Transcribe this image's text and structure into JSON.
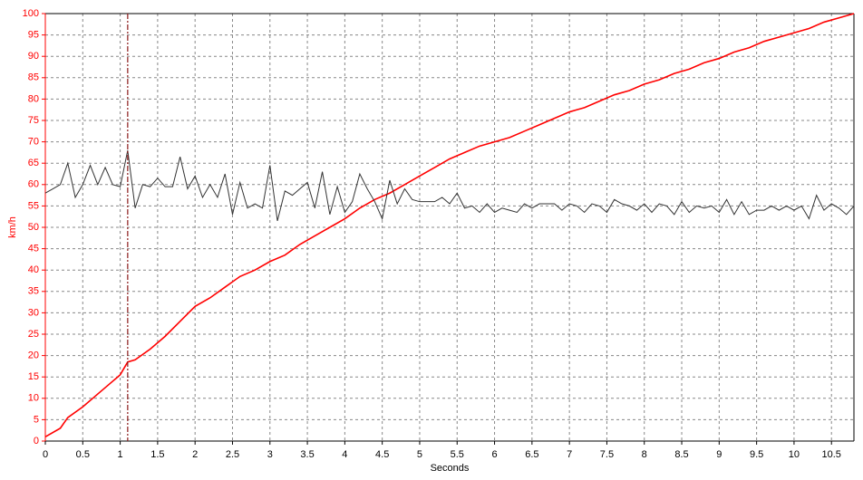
{
  "chart_data": {
    "type": "line",
    "xlabel": "Seconds",
    "ylabel": "km/h",
    "xlim": [
      0,
      10.8
    ],
    "ylim": [
      0,
      100
    ],
    "xticks": [
      0,
      0.5,
      1,
      1.5,
      2,
      2.5,
      3,
      3.5,
      4,
      4.5,
      5,
      5.5,
      6,
      6.5,
      7,
      7.5,
      8,
      8.5,
      9,
      9.5,
      10,
      10.5
    ],
    "yticks": [
      0,
      5,
      10,
      15,
      20,
      25,
      30,
      35,
      40,
      45,
      50,
      55,
      60,
      65,
      70,
      75,
      80,
      85,
      90,
      95,
      100
    ],
    "grid": true,
    "cursor": 1.1,
    "cursor_color": "#8b1a1a",
    "series": [
      {
        "color": "#ff0000",
        "x": [
          0,
          0.2,
          0.3,
          0.5,
          0.7,
          0.9,
          1,
          1.1,
          1.2,
          1.4,
          1.6,
          1.8,
          2,
          2.2,
          2.4,
          2.6,
          2.8,
          3,
          3.2,
          3.4,
          3.6,
          3.8,
          4,
          4.2,
          4.4,
          4.6,
          4.8,
          5,
          5.2,
          5.4,
          5.6,
          5.8,
          6,
          6.2,
          6.4,
          6.6,
          6.8,
          7,
          7.2,
          7.4,
          7.6,
          7.8,
          8,
          8.2,
          8.4,
          8.6,
          8.8,
          9,
          9.2,
          9.4,
          9.6,
          9.8,
          10,
          10.2,
          10.4,
          10.6,
          10.8
        ],
        "values": [
          1,
          3,
          5.5,
          8,
          11,
          14,
          15.5,
          18.5,
          19,
          21.5,
          24.5,
          28,
          31.5,
          33.5,
          36,
          38.5,
          40,
          42,
          43.5,
          46,
          48,
          50,
          52,
          54.5,
          56.5,
          58,
          60,
          62,
          64,
          66,
          67.5,
          69,
          70,
          71,
          72.5,
          74,
          75.5,
          77,
          78,
          79.5,
          81,
          82,
          83.5,
          84.5,
          86,
          87,
          88.5,
          89.5,
          91,
          92,
          93.5,
          94.5,
          95.5,
          96.5,
          98,
          99,
          100
        ]
      },
      {
        "color": "#333333",
        "x": [
          0,
          0.1,
          0.2,
          0.3,
          0.4,
          0.5,
          0.6,
          0.7,
          0.8,
          0.9,
          1,
          1.1,
          1.2,
          1.3,
          1.4,
          1.5,
          1.6,
          1.7,
          1.8,
          1.9,
          2,
          2.1,
          2.2,
          2.3,
          2.4,
          2.5,
          2.6,
          2.7,
          2.8,
          2.9,
          3,
          3.1,
          3.2,
          3.3,
          3.4,
          3.5,
          3.6,
          3.7,
          3.8,
          3.9,
          4,
          4.1,
          4.2,
          4.3,
          4.4,
          4.5,
          4.6,
          4.7,
          4.8,
          4.9,
          5,
          5.1,
          5.2,
          5.3,
          5.4,
          5.5,
          5.6,
          5.7,
          5.8,
          5.9,
          6,
          6.1,
          6.2,
          6.3,
          6.4,
          6.5,
          6.6,
          6.7,
          6.8,
          6.9,
          7,
          7.1,
          7.2,
          7.3,
          7.4,
          7.5,
          7.6,
          7.7,
          7.8,
          7.9,
          8,
          8.1,
          8.2,
          8.3,
          8.4,
          8.5,
          8.6,
          8.7,
          8.8,
          8.9,
          9,
          9.1,
          9.2,
          9.3,
          9.4,
          9.5,
          9.6,
          9.7,
          9.8,
          9.9,
          10,
          10.1,
          10.2,
          10.3,
          10.4,
          10.5,
          10.6,
          10.7,
          10.8
        ],
        "values": [
          58,
          59,
          60,
          65,
          57,
          60,
          64.5,
          60,
          64,
          60,
          59.5,
          68,
          54.5,
          60,
          59.5,
          61.5,
          59.5,
          59.5,
          66.5,
          59,
          62,
          57,
          60,
          57,
          62.5,
          53,
          60.5,
          54.5,
          55.5,
          54.5,
          64.5,
          51.5,
          58.5,
          57.5,
          59,
          60.5,
          54.5,
          63,
          53,
          59.5,
          53.5,
          56,
          62.5,
          59,
          56,
          52,
          61,
          55.5,
          59,
          56.5,
          56,
          56,
          56,
          57,
          55.5,
          58,
          54.5,
          55,
          53.5,
          55.5,
          53.5,
          54.5,
          54,
          53.5,
          55.5,
          54.5,
          55.5,
          55.5,
          55.5,
          54,
          55.5,
          55,
          53.5,
          55.5,
          55,
          53.5,
          56.5,
          55.5,
          55,
          54,
          55.5,
          53.5,
          55.5,
          55,
          53,
          56,
          53.5,
          55,
          54.5,
          55,
          53.5,
          56.5,
          53,
          56,
          53,
          54,
          54,
          55,
          54,
          55,
          54,
          55,
          52,
          57.5,
          54,
          55.5,
          54.5,
          53,
          55
        ]
      }
    ]
  }
}
